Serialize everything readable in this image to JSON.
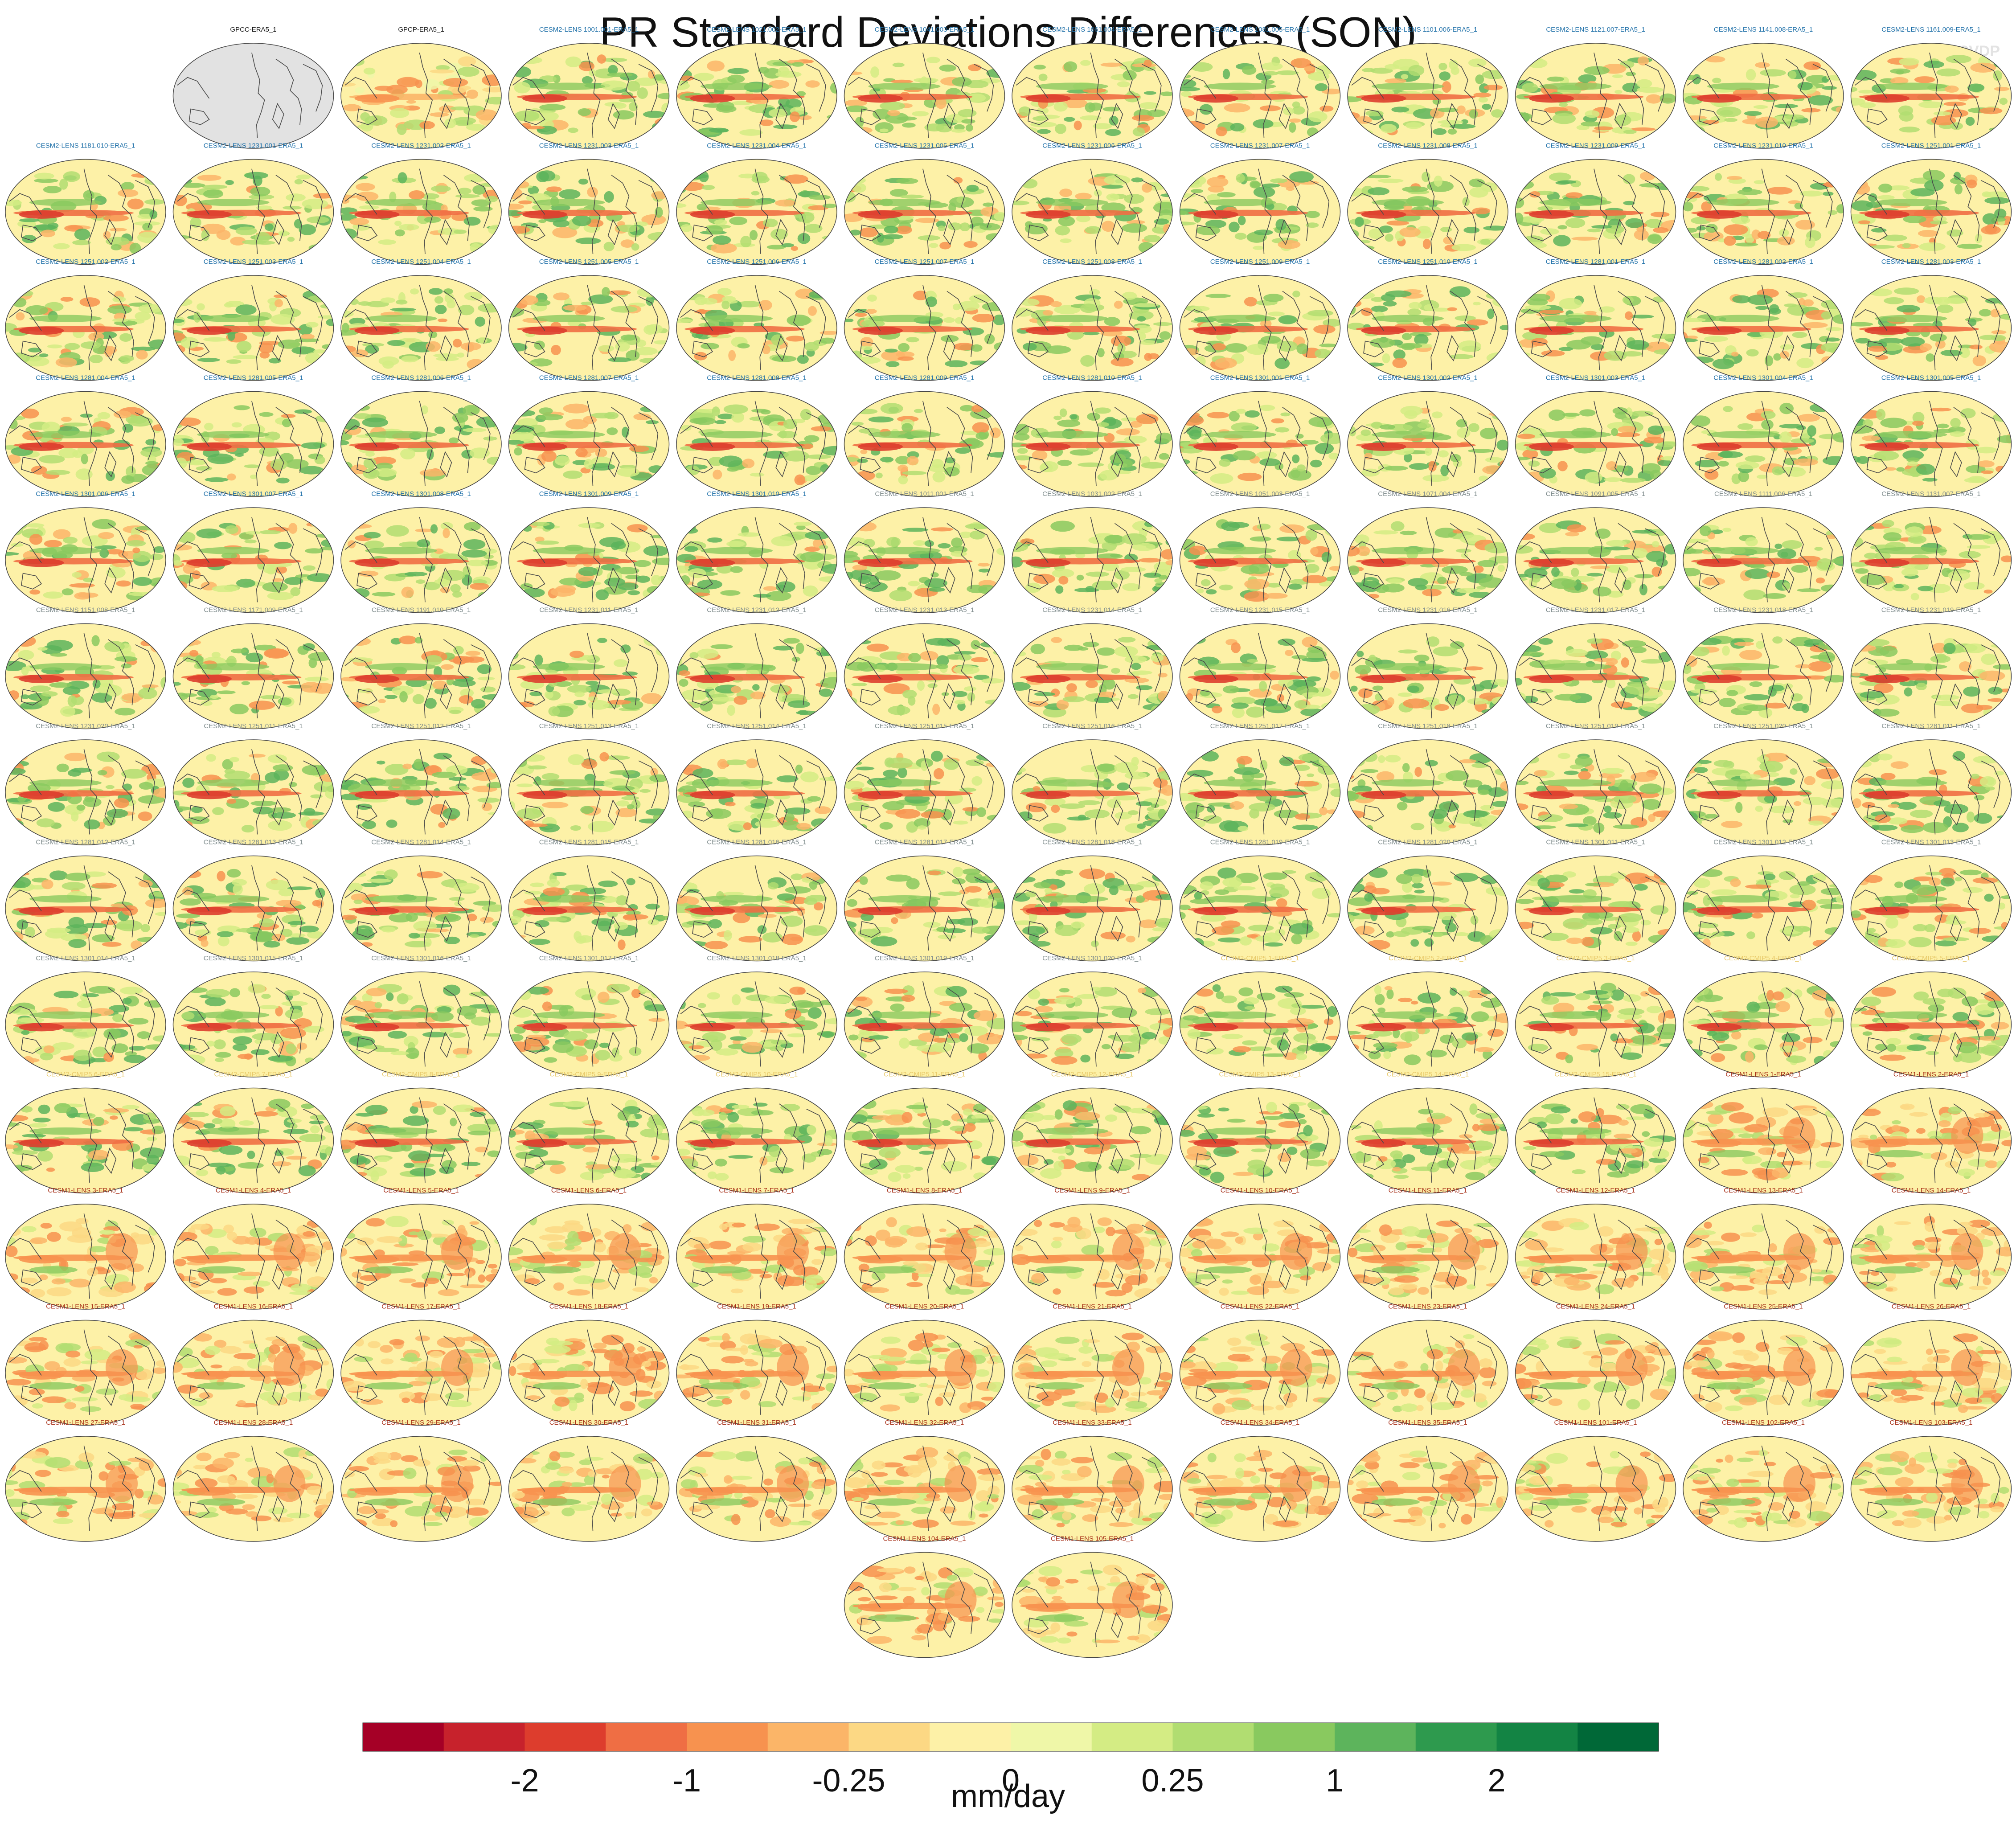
{
  "title": "PR Standard Deviations Differences (SON)",
  "watermark": "© CVDP",
  "colorbar": {
    "colors": [
      "#a50026",
      "#c7222c",
      "#dd3d2d",
      "#ef6e44",
      "#f7924f",
      "#fbb568",
      "#fcd884",
      "#fdf1a7",
      "#eff7a8",
      "#d4ec84",
      "#b1dd71",
      "#89c95f",
      "#5db45c",
      "#2e9a4e",
      "#138444",
      "#006837"
    ],
    "tick_labels": [
      "-2",
      "-1",
      "-0.25",
      "0",
      "0.25",
      "1",
      "2"
    ],
    "units": "mm/day"
  },
  "chart_data": {
    "type": "heatmap",
    "title": "PR Standard Deviations Differences (SON)",
    "colorbar_ticks": [
      -2,
      -1,
      -0.25,
      0,
      0.25,
      1,
      2
    ],
    "units": "mm/day",
    "panel_group_colors": {
      "obs": "#111111",
      "cesm2": "#1d6fa8",
      "cesm2grey": "#7f8c8d",
      "cmip5": "#e8c96a",
      "cesm1": "#a62d15"
    },
    "panels": [
      {
        "label": "GPCC-ERA5_1",
        "group": "obs",
        "pattern": "missing"
      },
      {
        "label": "GPCP-ERA5_1",
        "group": "obs",
        "pattern": "mixed"
      },
      {
        "label": "CESM2-LENS 1001.001-ERA5_1",
        "group": "cesm2",
        "pattern": "cesm2"
      },
      {
        "label": "CESM2-LENS 1021.002-ERA5_1",
        "group": "cesm2",
        "pattern": "cesm2"
      },
      {
        "label": "CESM2-LENS 1041.003-ERA5_1",
        "group": "cesm2",
        "pattern": "cesm2"
      },
      {
        "label": "CESM2-LENS 1061.004-ERA5_1",
        "group": "cesm2",
        "pattern": "cesm2"
      },
      {
        "label": "CESM2-LENS 1081.005-ERA5_1",
        "group": "cesm2",
        "pattern": "cesm2"
      },
      {
        "label": "CESM2-LENS 1101.006-ERA5_1",
        "group": "cesm2",
        "pattern": "cesm2"
      },
      {
        "label": "CESM2-LENS 1121.007-ERA5_1",
        "group": "cesm2",
        "pattern": "cesm2"
      },
      {
        "label": "CESM2-LENS 1141.008-ERA5_1",
        "group": "cesm2",
        "pattern": "cesm2"
      },
      {
        "label": "CESM2-LENS 1161.009-ERA5_1",
        "group": "cesm2",
        "pattern": "cesm2"
      },
      {
        "label": "CESM2-LENS 1181.010-ERA5_1",
        "group": "cesm2",
        "pattern": "cesm2"
      },
      {
        "label": "CESM2-LENS 1231.001-ERA5_1",
        "group": "cesm2",
        "pattern": "cesm2"
      },
      {
        "label": "CESM2-LENS 1231.002-ERA5_1",
        "group": "cesm2",
        "pattern": "cesm2"
      },
      {
        "label": "CESM2-LENS 1231.003-ERA5_1",
        "group": "cesm2",
        "pattern": "cesm2"
      },
      {
        "label": "CESM2-LENS 1231.004-ERA5_1",
        "group": "cesm2",
        "pattern": "cesm2"
      },
      {
        "label": "CESM2-LENS 1231.005-ERA5_1",
        "group": "cesm2",
        "pattern": "cesm2"
      },
      {
        "label": "CESM2-LENS 1231.006-ERA5_1",
        "group": "cesm2",
        "pattern": "cesm2"
      },
      {
        "label": "CESM2-LENS 1231.007-ERA5_1",
        "group": "cesm2",
        "pattern": "cesm2"
      },
      {
        "label": "CESM2-LENS 1231.008-ERA5_1",
        "group": "cesm2",
        "pattern": "cesm2"
      },
      {
        "label": "CESM2-LENS 1231.009-ERA5_1",
        "group": "cesm2",
        "pattern": "cesm2"
      },
      {
        "label": "CESM2-LENS 1231.010-ERA5_1",
        "group": "cesm2",
        "pattern": "cesm2"
      },
      {
        "label": "CESM2-LENS 1251.001-ERA5_1",
        "group": "cesm2",
        "pattern": "cesm2"
      },
      {
        "label": "CESM2-LENS 1251.002-ERA5_1",
        "group": "cesm2",
        "pattern": "cesm2"
      },
      {
        "label": "CESM2-LENS 1251.003-ERA5_1",
        "group": "cesm2",
        "pattern": "cesm2"
      },
      {
        "label": "CESM2-LENS 1251.004-ERA5_1",
        "group": "cesm2",
        "pattern": "cesm2"
      },
      {
        "label": "CESM2-LENS 1251.005-ERA5_1",
        "group": "cesm2",
        "pattern": "cesm2"
      },
      {
        "label": "CESM2-LENS 1251.006-ERA5_1",
        "group": "cesm2",
        "pattern": "cesm2"
      },
      {
        "label": "CESM2-LENS 1251.007-ERA5_1",
        "group": "cesm2",
        "pattern": "cesm2"
      },
      {
        "label": "CESM2-LENS 1251.008-ERA5_1",
        "group": "cesm2",
        "pattern": "cesm2"
      },
      {
        "label": "CESM2-LENS 1251.009-ERA5_1",
        "group": "cesm2",
        "pattern": "cesm2"
      },
      {
        "label": "CESM2-LENS 1251.010-ERA5_1",
        "group": "cesm2",
        "pattern": "cesm2"
      },
      {
        "label": "CESM2-LENS 1281.001-ERA5_1",
        "group": "cesm2",
        "pattern": "cesm2"
      },
      {
        "label": "CESM2-LENS 1281.002-ERA5_1",
        "group": "cesm2",
        "pattern": "cesm2"
      },
      {
        "label": "CESM2-LENS 1281.003-ERA5_1",
        "group": "cesm2",
        "pattern": "cesm2"
      },
      {
        "label": "CESM2-LENS 1281.004-ERA5_1",
        "group": "cesm2",
        "pattern": "cesm2"
      },
      {
        "label": "CESM2-LENS 1281.005-ERA5_1",
        "group": "cesm2",
        "pattern": "cesm2"
      },
      {
        "label": "CESM2-LENS 1281.006-ERA5_1",
        "group": "cesm2",
        "pattern": "cesm2"
      },
      {
        "label": "CESM2-LENS 1281.007-ERA5_1",
        "group": "cesm2",
        "pattern": "cesm2"
      },
      {
        "label": "CESM2-LENS 1281.008-ERA5_1",
        "group": "cesm2",
        "pattern": "cesm2"
      },
      {
        "label": "CESM2-LENS 1281.009-ERA5_1",
        "group": "cesm2",
        "pattern": "cesm2"
      },
      {
        "label": "CESM2-LENS 1281.010-ERA5_1",
        "group": "cesm2",
        "pattern": "cesm2"
      },
      {
        "label": "CESM2-LENS 1301.001-ERA5_1",
        "group": "cesm2",
        "pattern": "cesm2"
      },
      {
        "label": "CESM2-LENS 1301.002-ERA5_1",
        "group": "cesm2",
        "pattern": "cesm2"
      },
      {
        "label": "CESM2-LENS 1301.003-ERA5_1",
        "group": "cesm2",
        "pattern": "cesm2"
      },
      {
        "label": "CESM2-LENS 1301.004-ERA5_1",
        "group": "cesm2",
        "pattern": "cesm2"
      },
      {
        "label": "CESM2-LENS 1301.005-ERA5_1",
        "group": "cesm2",
        "pattern": "cesm2"
      },
      {
        "label": "CESM2-LENS 1301.006-ERA5_1",
        "group": "cesm2",
        "pattern": "cesm2"
      },
      {
        "label": "CESM2-LENS 1301.007-ERA5_1",
        "group": "cesm2",
        "pattern": "cesm2"
      },
      {
        "label": "CESM2-LENS 1301.008-ERA5_1",
        "group": "cesm2",
        "pattern": "cesm2"
      },
      {
        "label": "CESM2-LENS 1301.009-ERA5_1",
        "group": "cesm2",
        "pattern": "cesm2"
      },
      {
        "label": "CESM2-LENS 1301.010-ERA5_1",
        "group": "cesm2",
        "pattern": "cesm2"
      },
      {
        "label": "CESM2-LENS 1011.001-ERA5_1",
        "group": "cesm2grey",
        "pattern": "cesm2"
      },
      {
        "label": "CESM2-LENS 1031.002-ERA5_1",
        "group": "cesm2grey",
        "pattern": "cesm2"
      },
      {
        "label": "CESM2-LENS 1051.003-ERA5_1",
        "group": "cesm2grey",
        "pattern": "cesm2"
      },
      {
        "label": "CESM2-LENS 1071.004-ERA5_1",
        "group": "cesm2grey",
        "pattern": "cesm2"
      },
      {
        "label": "CESM2-LENS 1091.005-ERA5_1",
        "group": "cesm2grey",
        "pattern": "cesm2"
      },
      {
        "label": "CESM2-LENS 1111.006-ERA5_1",
        "group": "cesm2grey",
        "pattern": "cesm2"
      },
      {
        "label": "CESM2-LENS 1131.007-ERA5_1",
        "group": "cesm2grey",
        "pattern": "cesm2"
      },
      {
        "label": "CESM2-LENS 1151.008-ERA5_1",
        "group": "cesm2grey",
        "pattern": "cesm2"
      },
      {
        "label": "CESM2-LENS 1171.009-ERA5_1",
        "group": "cesm2grey",
        "pattern": "cesm2"
      },
      {
        "label": "CESM2-LENS 1191.010-ERA5_1",
        "group": "cesm2grey",
        "pattern": "cesm2"
      },
      {
        "label": "CESM2-LENS 1231.011-ERA5_1",
        "group": "cesm2grey",
        "pattern": "cesm2"
      },
      {
        "label": "CESM2-LENS 1231.012-ERA5_1",
        "group": "cesm2grey",
        "pattern": "cesm2"
      },
      {
        "label": "CESM2-LENS 1231.013-ERA5_1",
        "group": "cesm2grey",
        "pattern": "cesm2"
      },
      {
        "label": "CESM2-LENS 1231.014-ERA5_1",
        "group": "cesm2grey",
        "pattern": "cesm2"
      },
      {
        "label": "CESM2-LENS 1231.015-ERA5_1",
        "group": "cesm2grey",
        "pattern": "cesm2"
      },
      {
        "label": "CESM2-LENS 1231.016-ERA5_1",
        "group": "cesm2grey",
        "pattern": "cesm2"
      },
      {
        "label": "CESM2-LENS 1231.017-ERA5_1",
        "group": "cesm2grey",
        "pattern": "cesm2"
      },
      {
        "label": "CESM2-LENS 1231.018-ERA5_1",
        "group": "cesm2grey",
        "pattern": "cesm2"
      },
      {
        "label": "CESM2-LENS 1231.019-ERA5_1",
        "group": "cesm2grey",
        "pattern": "cesm2"
      },
      {
        "label": "CESM2-LENS 1231.020-ERA5_1",
        "group": "cesm2grey",
        "pattern": "cesm2"
      },
      {
        "label": "CESM2-LENS 1251.011-ERA5_1",
        "group": "cesm2grey",
        "pattern": "cesm2"
      },
      {
        "label": "CESM2-LENS 1251.012-ERA5_1",
        "group": "cesm2grey",
        "pattern": "cesm2"
      },
      {
        "label": "CESM2-LENS 1251.013-ERA5_1",
        "group": "cesm2grey",
        "pattern": "cesm2"
      },
      {
        "label": "CESM2-LENS 1251.014-ERA5_1",
        "group": "cesm2grey",
        "pattern": "cesm2"
      },
      {
        "label": "CESM2-LENS 1251.015-ERA5_1",
        "group": "cesm2grey",
        "pattern": "cesm2"
      },
      {
        "label": "CESM2-LENS 1251.016-ERA5_1",
        "group": "cesm2grey",
        "pattern": "cesm2"
      },
      {
        "label": "CESM2-LENS 1251.017-ERA5_1",
        "group": "cesm2grey",
        "pattern": "cesm2"
      },
      {
        "label": "CESM2-LENS 1251.018-ERA5_1",
        "group": "cesm2grey",
        "pattern": "cesm2"
      },
      {
        "label": "CESM2-LENS 1251.019-ERA5_1",
        "group": "cesm2grey",
        "pattern": "cesm2"
      },
      {
        "label": "CESM2-LENS 1251.020-ERA5_1",
        "group": "cesm2grey",
        "pattern": "cesm2"
      },
      {
        "label": "CESM2-LENS 1281.011-ERA5_1",
        "group": "cesm2grey",
        "pattern": "cesm2"
      },
      {
        "label": "CESM2-LENS 1281.012-ERA5_1",
        "group": "cesm2grey",
        "pattern": "cesm2"
      },
      {
        "label": "CESM2-LENS 1281.013-ERA5_1",
        "group": "cesm2grey",
        "pattern": "cesm2"
      },
      {
        "label": "CESM2-LENS 1281.014-ERA5_1",
        "group": "cesm2grey",
        "pattern": "cesm2"
      },
      {
        "label": "CESM2-LENS 1281.015-ERA5_1",
        "group": "cesm2grey",
        "pattern": "cesm2"
      },
      {
        "label": "CESM2-LENS 1281.016-ERA5_1",
        "group": "cesm2grey",
        "pattern": "cesm2"
      },
      {
        "label": "CESM2-LENS 1281.017-ERA5_1",
        "group": "cesm2grey",
        "pattern": "cesm2"
      },
      {
        "label": "CESM2-LENS 1281.018-ERA5_1",
        "group": "cesm2grey",
        "pattern": "cesm2"
      },
      {
        "label": "CESM2-LENS 1281.019-ERA5_1",
        "group": "cesm2grey",
        "pattern": "cesm2"
      },
      {
        "label": "CESM2-LENS 1281.020-ERA5_1",
        "group": "cesm2grey",
        "pattern": "cesm2"
      },
      {
        "label": "CESM2-LENS 1301.011-ERA5_1",
        "group": "cesm2grey",
        "pattern": "cesm2"
      },
      {
        "label": "CESM2-LENS 1301.012-ERA5_1",
        "group": "cesm2grey",
        "pattern": "cesm2"
      },
      {
        "label": "CESM2-LENS 1301.013-ERA5_1",
        "group": "cesm2grey",
        "pattern": "cesm2"
      },
      {
        "label": "CESM2-LENS 1301.014-ERA5_1",
        "group": "cesm2grey",
        "pattern": "cesm2"
      },
      {
        "label": "CESM2-LENS 1301.015-ERA5_1",
        "group": "cesm2grey",
        "pattern": "cesm2"
      },
      {
        "label": "CESM2-LENS 1301.016-ERA5_1",
        "group": "cesm2grey",
        "pattern": "cesm2"
      },
      {
        "label": "CESM2-LENS 1301.017-ERA5_1",
        "group": "cesm2grey",
        "pattern": "cesm2"
      },
      {
        "label": "CESM2-LENS 1301.018-ERA5_1",
        "group": "cesm2grey",
        "pattern": "cesm2"
      },
      {
        "label": "CESM2-LENS 1301.019-ERA5_1",
        "group": "cesm2grey",
        "pattern": "cesm2"
      },
      {
        "label": "CESM2-LENS 1301.020-ERA5_1",
        "group": "cesm2grey",
        "pattern": "cesm2"
      },
      {
        "label": "CESM2-CMIP5 1-ERA5_1",
        "group": "cmip5",
        "pattern": "cesm2"
      },
      {
        "label": "CESM2-CMIP5 2-ERA5_1",
        "group": "cmip5",
        "pattern": "cesm2"
      },
      {
        "label": "CESM2-CMIP5 3-ERA5_1",
        "group": "cmip5",
        "pattern": "cesm2"
      },
      {
        "label": "CESM2-CMIP5 4-ERA5_1",
        "group": "cmip5",
        "pattern": "cesm2"
      },
      {
        "label": "CESM2-CMIP5 5-ERA5_1",
        "group": "cmip5",
        "pattern": "cesm2"
      },
      {
        "label": "CESM2-CMIP5 6-ERA5_1",
        "group": "cmip5",
        "pattern": "cesm2"
      },
      {
        "label": "CESM2-CMIP5 7-ERA5_1",
        "group": "cmip5",
        "pattern": "cesm2"
      },
      {
        "label": "CESM2-CMIP5 8-ERA5_1",
        "group": "cmip5",
        "pattern": "cesm2"
      },
      {
        "label": "CESM2-CMIP5 9-ERA5_1",
        "group": "cmip5",
        "pattern": "cesm2"
      },
      {
        "label": "CESM2-CMIP5 10-ERA5_1",
        "group": "cmip5",
        "pattern": "cesm2"
      },
      {
        "label": "CESM2-CMIP5 11-ERA5_1",
        "group": "cmip5",
        "pattern": "cesm2"
      },
      {
        "label": "CESM2-CMIP5 12-ERA5_1",
        "group": "cmip5",
        "pattern": "cesm2"
      },
      {
        "label": "CESM2-CMIP5 13-ERA5_1",
        "group": "cmip5",
        "pattern": "cesm2"
      },
      {
        "label": "CESM2-CMIP5 14-ERA5_1",
        "group": "cmip5",
        "pattern": "cesm2"
      },
      {
        "label": "CESM2-CMIP5 15-ERA5_1",
        "group": "cmip5",
        "pattern": "cesm2"
      },
      {
        "label": "CESM1-LENS 1-ERA5_1",
        "group": "cesm1",
        "pattern": "cesm1"
      },
      {
        "label": "CESM1-LENS 2-ERA5_1",
        "group": "cesm1",
        "pattern": "cesm1"
      },
      {
        "label": "CESM1-LENS 3-ERA5_1",
        "group": "cesm1",
        "pattern": "cesm1"
      },
      {
        "label": "CESM1-LENS 4-ERA5_1",
        "group": "cesm1",
        "pattern": "cesm1"
      },
      {
        "label": "CESM1-LENS 5-ERA5_1",
        "group": "cesm1",
        "pattern": "cesm1"
      },
      {
        "label": "CESM1-LENS 6-ERA5_1",
        "group": "cesm1",
        "pattern": "cesm1"
      },
      {
        "label": "CESM1-LENS 7-ERA5_1",
        "group": "cesm1",
        "pattern": "cesm1"
      },
      {
        "label": "CESM1-LENS 8-ERA5_1",
        "group": "cesm1",
        "pattern": "cesm1"
      },
      {
        "label": "CESM1-LENS 9-ERA5_1",
        "group": "cesm1",
        "pattern": "cesm1"
      },
      {
        "label": "CESM1-LENS 10-ERA5_1",
        "group": "cesm1",
        "pattern": "cesm1"
      },
      {
        "label": "CESM1-LENS 11-ERA5_1",
        "group": "cesm1",
        "pattern": "cesm1"
      },
      {
        "label": "CESM1-LENS 12-ERA5_1",
        "group": "cesm1",
        "pattern": "cesm1"
      },
      {
        "label": "CESM1-LENS 13-ERA5_1",
        "group": "cesm1",
        "pattern": "cesm1"
      },
      {
        "label": "CESM1-LENS 14-ERA5_1",
        "group": "cesm1",
        "pattern": "cesm1"
      },
      {
        "label": "CESM1-LENS 15-ERA5_1",
        "group": "cesm1",
        "pattern": "cesm1"
      },
      {
        "label": "CESM1-LENS 16-ERA5_1",
        "group": "cesm1",
        "pattern": "cesm1"
      },
      {
        "label": "CESM1-LENS 17-ERA5_1",
        "group": "cesm1",
        "pattern": "cesm1"
      },
      {
        "label": "CESM1-LENS 18-ERA5_1",
        "group": "cesm1",
        "pattern": "cesm1"
      },
      {
        "label": "CESM1-LENS 19-ERA5_1",
        "group": "cesm1",
        "pattern": "cesm1"
      },
      {
        "label": "CESM1-LENS 20-ERA5_1",
        "group": "cesm1",
        "pattern": "cesm1"
      },
      {
        "label": "CESM1-LENS 21-ERA5_1",
        "group": "cesm1",
        "pattern": "cesm1"
      },
      {
        "label": "CESM1-LENS 22-ERA5_1",
        "group": "cesm1",
        "pattern": "cesm1"
      },
      {
        "label": "CESM1-LENS 23-ERA5_1",
        "group": "cesm1",
        "pattern": "cesm1"
      },
      {
        "label": "CESM1-LENS 24-ERA5_1",
        "group": "cesm1",
        "pattern": "cesm1"
      },
      {
        "label": "CESM1-LENS 25-ERA5_1",
        "group": "cesm1",
        "pattern": "cesm1"
      },
      {
        "label": "CESM1-LENS 26-ERA5_1",
        "group": "cesm1",
        "pattern": "cesm1"
      },
      {
        "label": "CESM1-LENS 27-ERA5_1",
        "group": "cesm1",
        "pattern": "cesm1"
      },
      {
        "label": "CESM1-LENS 28-ERA5_1",
        "group": "cesm1",
        "pattern": "cesm1"
      },
      {
        "label": "CESM1-LENS 29-ERA5_1",
        "group": "cesm1",
        "pattern": "cesm1"
      },
      {
        "label": "CESM1-LENS 30-ERA5_1",
        "group": "cesm1",
        "pattern": "cesm1"
      },
      {
        "label": "CESM1-LENS 31-ERA5_1",
        "group": "cesm1",
        "pattern": "cesm1"
      },
      {
        "label": "CESM1-LENS 32-ERA5_1",
        "group": "cesm1",
        "pattern": "cesm1"
      },
      {
        "label": "CESM1-LENS 33-ERA5_1",
        "group": "cesm1",
        "pattern": "cesm1"
      },
      {
        "label": "CESM1-LENS 34-ERA5_1",
        "group": "cesm1",
        "pattern": "cesm1"
      },
      {
        "label": "CESM1-LENS 35-ERA5_1",
        "group": "cesm1",
        "pattern": "cesm1"
      },
      {
        "label": "CESM1-LENS 101-ERA5_1",
        "group": "cesm1",
        "pattern": "cesm1"
      },
      {
        "label": "CESM1-LENS 102-ERA5_1",
        "group": "cesm1",
        "pattern": "cesm1"
      },
      {
        "label": "CESM1-LENS 103-ERA5_1",
        "group": "cesm1",
        "pattern": "cesm1"
      },
      {
        "label": "CESM1-LENS 104-ERA5_1",
        "group": "cesm1",
        "pattern": "cesm1"
      },
      {
        "label": "CESM1-LENS 105-ERA5_1",
        "group": "cesm1",
        "pattern": "cesm1"
      }
    ]
  }
}
